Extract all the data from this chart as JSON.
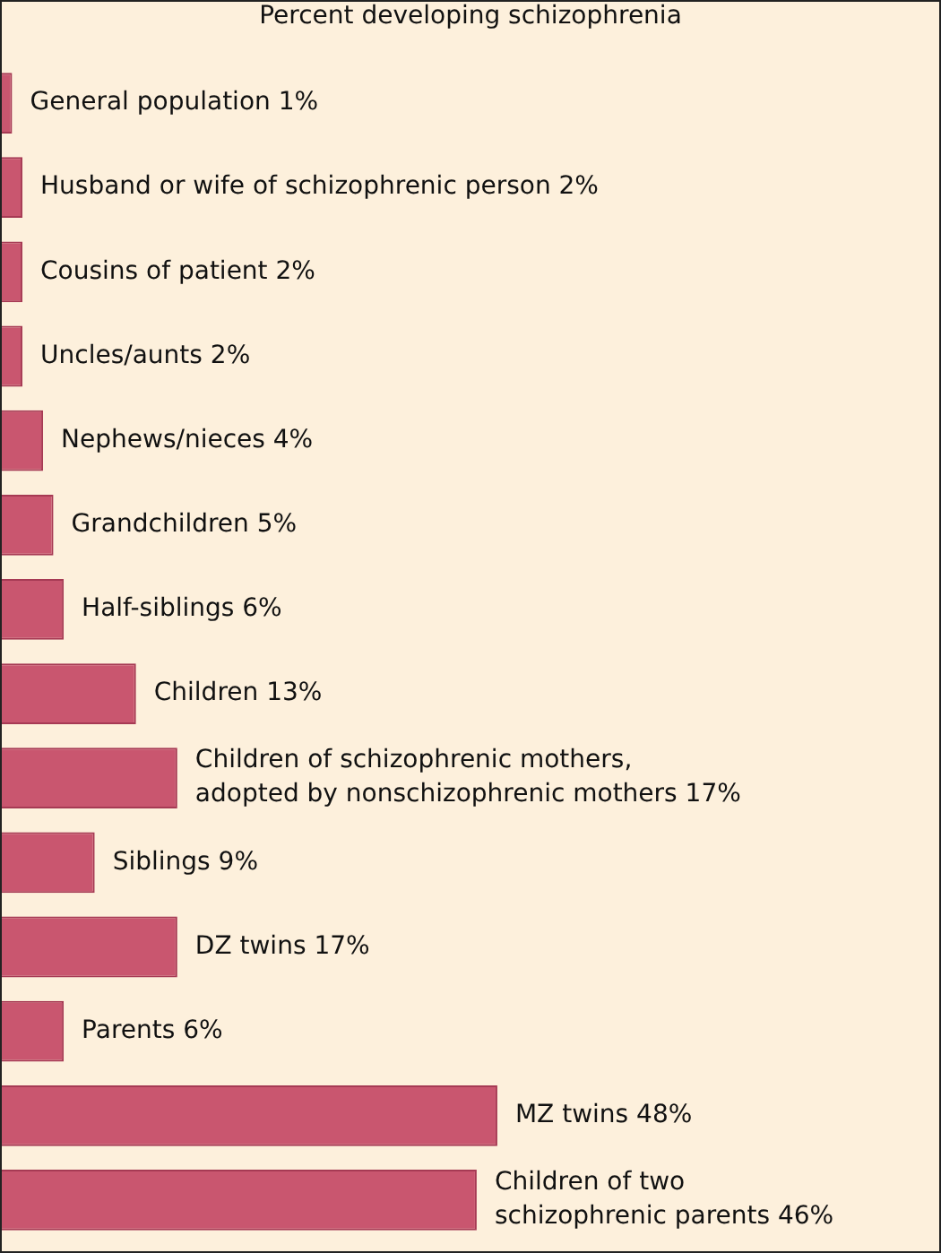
{
  "chart_data": {
    "type": "bar",
    "orientation": "horizontal",
    "title": "Percent developing schizophrenia",
    "categories": [
      null,
      null,
      null,
      null,
      null,
      null,
      null,
      null,
      null,
      null,
      null,
      null,
      null,
      null
    ],
    "values": [
      1,
      2,
      2,
      2,
      4,
      5,
      6,
      13,
      17,
      9,
      17,
      6,
      48,
      46
    ],
    "value_labels": [
      "General population 1%",
      "Husband or wife of schizophrenic person 2%",
      "Cousins of patient 2%",
      "Uncles/aunts 2%",
      "Nephews/nieces 4%",
      "Grandchildren 5%",
      "Half-siblings 6%",
      "Children 13%",
      "Children of schizophrenic mothers, adopted by nonschizophrenic mothers 17%",
      "Siblings 9%",
      "DZ twins 17%",
      "Parents 6%",
      "MZ twins 48%",
      "Children of two schizophrenic parents 46%"
    ],
    "color": "#c9566f",
    "legend": false
  }
}
